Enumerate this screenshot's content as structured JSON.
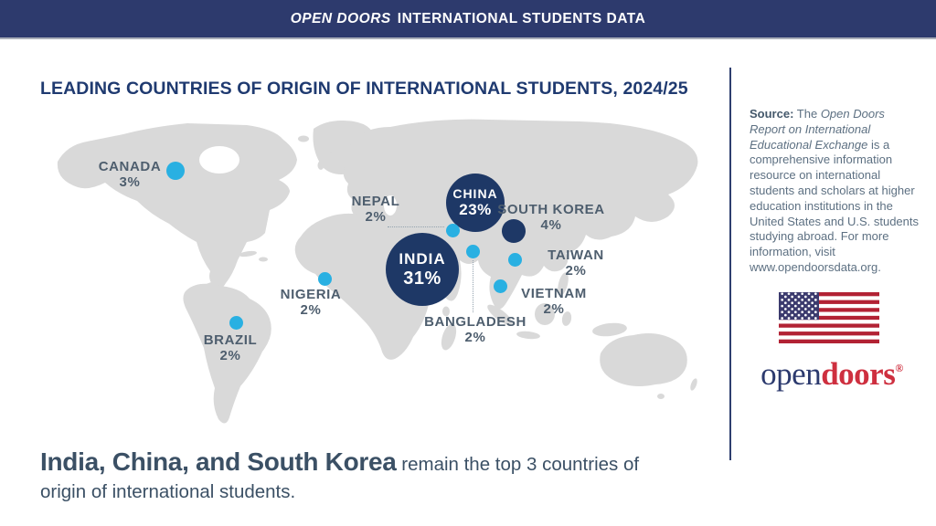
{
  "banner": {
    "title_italic": "OPEN DOORS",
    "title_rest": "INTERNATIONAL STUDENTS DATA"
  },
  "page": {
    "title": "LEADING COUNTRIES OF ORIGIN OF INTERNATIONAL STUDENTS, 2024/25"
  },
  "chart_data": {
    "type": "bubble-map",
    "title": "Leading Countries of Origin of International Students, 2024/25",
    "unit": "percent of international students in the United States",
    "legend_position": "none",
    "colors": {
      "large_bubble": "#1e3866",
      "small_bubble": "#29b0e2",
      "land": "#d9d9d9"
    },
    "countries": [
      {
        "name": "CANADA",
        "pct": "3%",
        "value": 3,
        "tier": "light"
      },
      {
        "name": "CHINA",
        "pct": "23%",
        "value": 23,
        "tier": "dark"
      },
      {
        "name": "INDIA",
        "pct": "31%",
        "value": 31,
        "tier": "dark"
      },
      {
        "name": "SOUTH KOREA",
        "pct": "4%",
        "value": 4,
        "tier": "dark"
      },
      {
        "name": "NEPAL",
        "pct": "2%",
        "value": 2,
        "tier": "light"
      },
      {
        "name": "BANGLADESH",
        "pct": "2%",
        "value": 2,
        "tier": "light"
      },
      {
        "name": "TAIWAN",
        "pct": "2%",
        "value": 2,
        "tier": "light"
      },
      {
        "name": "VIETNAM",
        "pct": "2%",
        "value": 2,
        "tier": "light"
      },
      {
        "name": "NIGERIA",
        "pct": "2%",
        "value": 2,
        "tier": "light"
      },
      {
        "name": "BRAZIL",
        "pct": "2%",
        "value": 2,
        "tier": "light"
      }
    ]
  },
  "sidebar": {
    "source_bold": "Source:",
    "source_pre": "The ",
    "source_italic": "Open Doors Report on International Educational Exchange",
    "source_rest": " is a comprehensive information resource on international students and scholars at higher education institutions in the United States and U.S. students studying abroad. For more information, visit www.opendoorsdata.org.",
    "logo_open": "open",
    "logo_doors": "doors",
    "logo_reg": "®"
  },
  "footer": {
    "headline_bold": "India, China, and South Korea",
    "headline_rest_line1": " remain the top 3 countries of",
    "headline_rest_line2": "origin of international students."
  }
}
